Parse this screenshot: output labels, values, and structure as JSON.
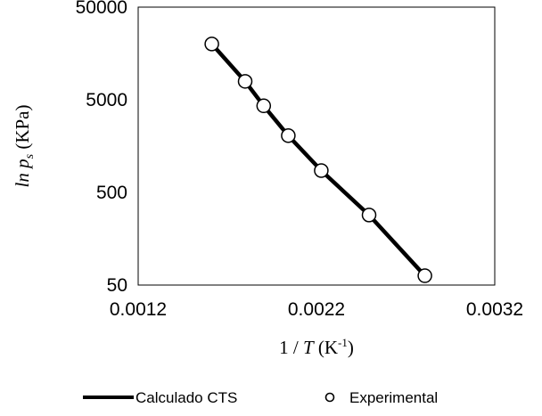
{
  "chart_data": {
    "type": "scatter",
    "title": "",
    "xlabel": {
      "prefix": "1 / ",
      "var": "T",
      "unit": " (K",
      "sup": "-1",
      "close": ")"
    },
    "ylabel": {
      "fn": "ln ",
      "var": "p",
      "sub": "s",
      "unit": " (KPa)"
    },
    "x_ticks": [
      "0.0012",
      "0.0022",
      "0.0032"
    ],
    "y_ticks": [
      "50",
      "500",
      "5000",
      "50000"
    ],
    "xlim": [
      0.0012,
      0.0032
    ],
    "ylim": [
      50,
      50000
    ],
    "y_scale": "log",
    "grid": false,
    "legend_position": "bottom",
    "series": [
      {
        "name": "Calculado CTS",
        "style": "line",
        "color": "#000000",
        "x": [
          0.001613,
          0.0018,
          0.001904,
          0.002042,
          0.002227,
          0.002495,
          0.002808
        ],
        "y": [
          20000,
          7900,
          4300,
          2050,
          860,
          285,
          63
        ]
      },
      {
        "name": "Experimental",
        "style": "open-circle",
        "color": "#000000",
        "x": [
          0.001613,
          0.0018,
          0.001904,
          0.002042,
          0.002227,
          0.002495,
          0.002808
        ],
        "y": [
          20000,
          7900,
          4300,
          2050,
          860,
          285,
          63
        ]
      }
    ]
  }
}
